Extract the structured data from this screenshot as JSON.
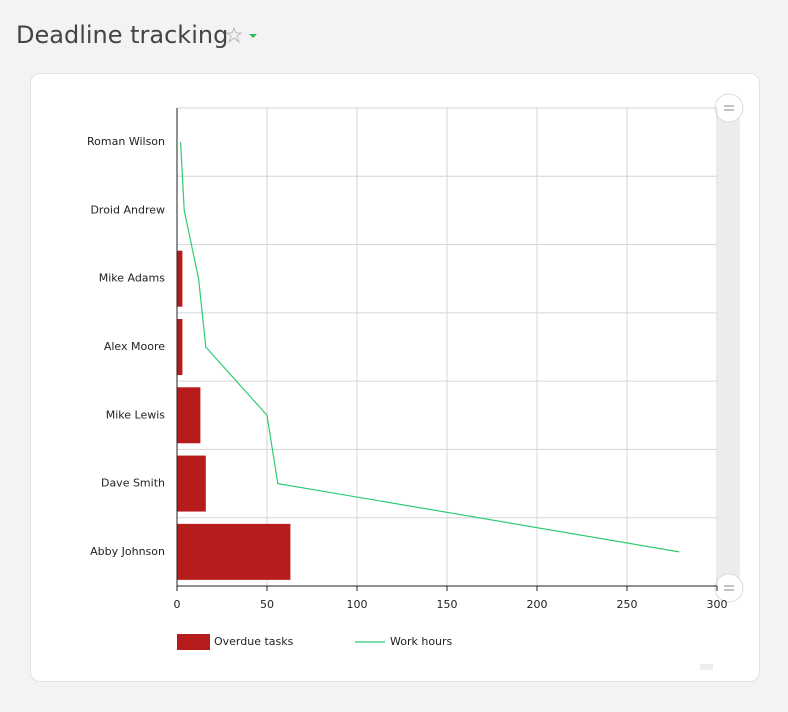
{
  "chart_data": {
    "type": "bar",
    "orientation": "horizontal",
    "title": "Deadline tracking",
    "categories": [
      "Roman Wilson",
      "Droid Andrew",
      "Mike Adams",
      "Alex Moore",
      "Mike Lewis",
      "Dave Smith",
      "Abby Johnson"
    ],
    "series": [
      {
        "name": "Overdue tasks",
        "type": "bar",
        "color": "#b71c1c",
        "values": [
          0,
          0,
          3,
          3,
          13,
          16,
          63
        ]
      },
      {
        "name": "Work hours",
        "type": "line",
        "color": "#2ecc71",
        "values": [
          2,
          4,
          12,
          16,
          50,
          56,
          279
        ]
      }
    ],
    "xlim": [
      0,
      300
    ],
    "xticks": [
      0,
      50,
      100,
      150,
      200,
      250,
      300
    ],
    "grid": true,
    "legend": "bottom"
  }
}
